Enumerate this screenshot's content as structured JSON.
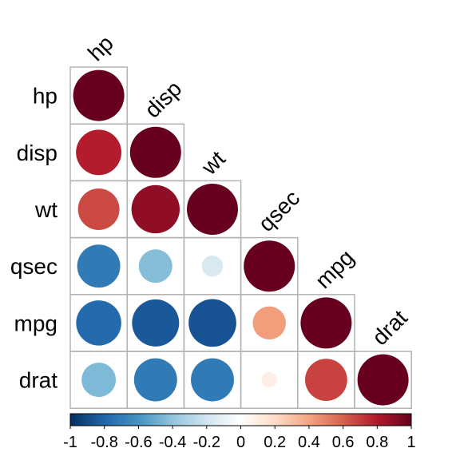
{
  "chart_data": {
    "type": "heatmap",
    "subtype": "correlation-circle-lower-triangle",
    "title": "",
    "variables": [
      "hp",
      "disp",
      "wt",
      "qsec",
      "mpg",
      "drat"
    ],
    "matrix": [
      [
        1.0,
        0.79,
        0.66,
        -0.71,
        -0.78,
        -0.45
      ],
      [
        0.79,
        1.0,
        0.89,
        -0.43,
        -0.85,
        -0.71
      ],
      [
        0.66,
        0.89,
        1.0,
        -0.17,
        -0.87,
        -0.71
      ],
      [
        -0.71,
        -0.43,
        -0.17,
        1.0,
        0.42,
        0.09
      ],
      [
        -0.78,
        -0.85,
        -0.87,
        0.42,
        1.0,
        0.68
      ],
      [
        -0.45,
        -0.71,
        -0.71,
        0.09,
        0.68,
        1.0
      ]
    ],
    "colorbar": {
      "range": [
        -1,
        1
      ],
      "ticks": [
        -1,
        -0.8,
        -0.6,
        -0.4,
        -0.2,
        0,
        0.2,
        0.4,
        0.6,
        0.8,
        1
      ],
      "tick_labels": [
        "-1",
        "-0.8",
        "-0.6",
        "-0.4",
        "-0.2",
        "0",
        "0.2",
        "0.4",
        "0.6",
        "0.8",
        "1"
      ],
      "colors": [
        "#053061",
        "#2166AC",
        "#4393C3",
        "#92C5DE",
        "#D1E5F0",
        "#FFFFFF",
        "#FDDBC7",
        "#F4A582",
        "#D6604D",
        "#B2182B",
        "#67001F"
      ],
      "placement": "bottom"
    }
  }
}
